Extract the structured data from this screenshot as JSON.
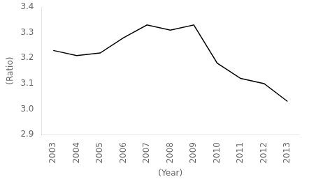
{
  "chart_data": {
    "type": "line",
    "x": [
      2003,
      2004,
      2005,
      2006,
      2007,
      2008,
      2009,
      2010,
      2011,
      2012,
      2013
    ],
    "values": [
      3.23,
      3.21,
      3.22,
      3.28,
      3.33,
      3.31,
      3.33,
      3.18,
      3.12,
      3.1,
      3.03
    ],
    "color": "#000000",
    "marker": "none",
    "x_label": "(Year)",
    "y_label": "(Ratio)",
    "xlim": [
      2002.5,
      2013.5
    ],
    "xticks": [
      2003,
      2004,
      2005,
      2006,
      2007,
      2008,
      2009,
      2010,
      2011,
      2012,
      2013
    ],
    "ylim": [
      2.9,
      3.4
    ],
    "yticks": [
      2.9,
      {
        "value": 3.0,
        "label": "3.0"
      },
      3.1,
      3.2,
      3.3,
      3.4
    ],
    "grid": false
  }
}
